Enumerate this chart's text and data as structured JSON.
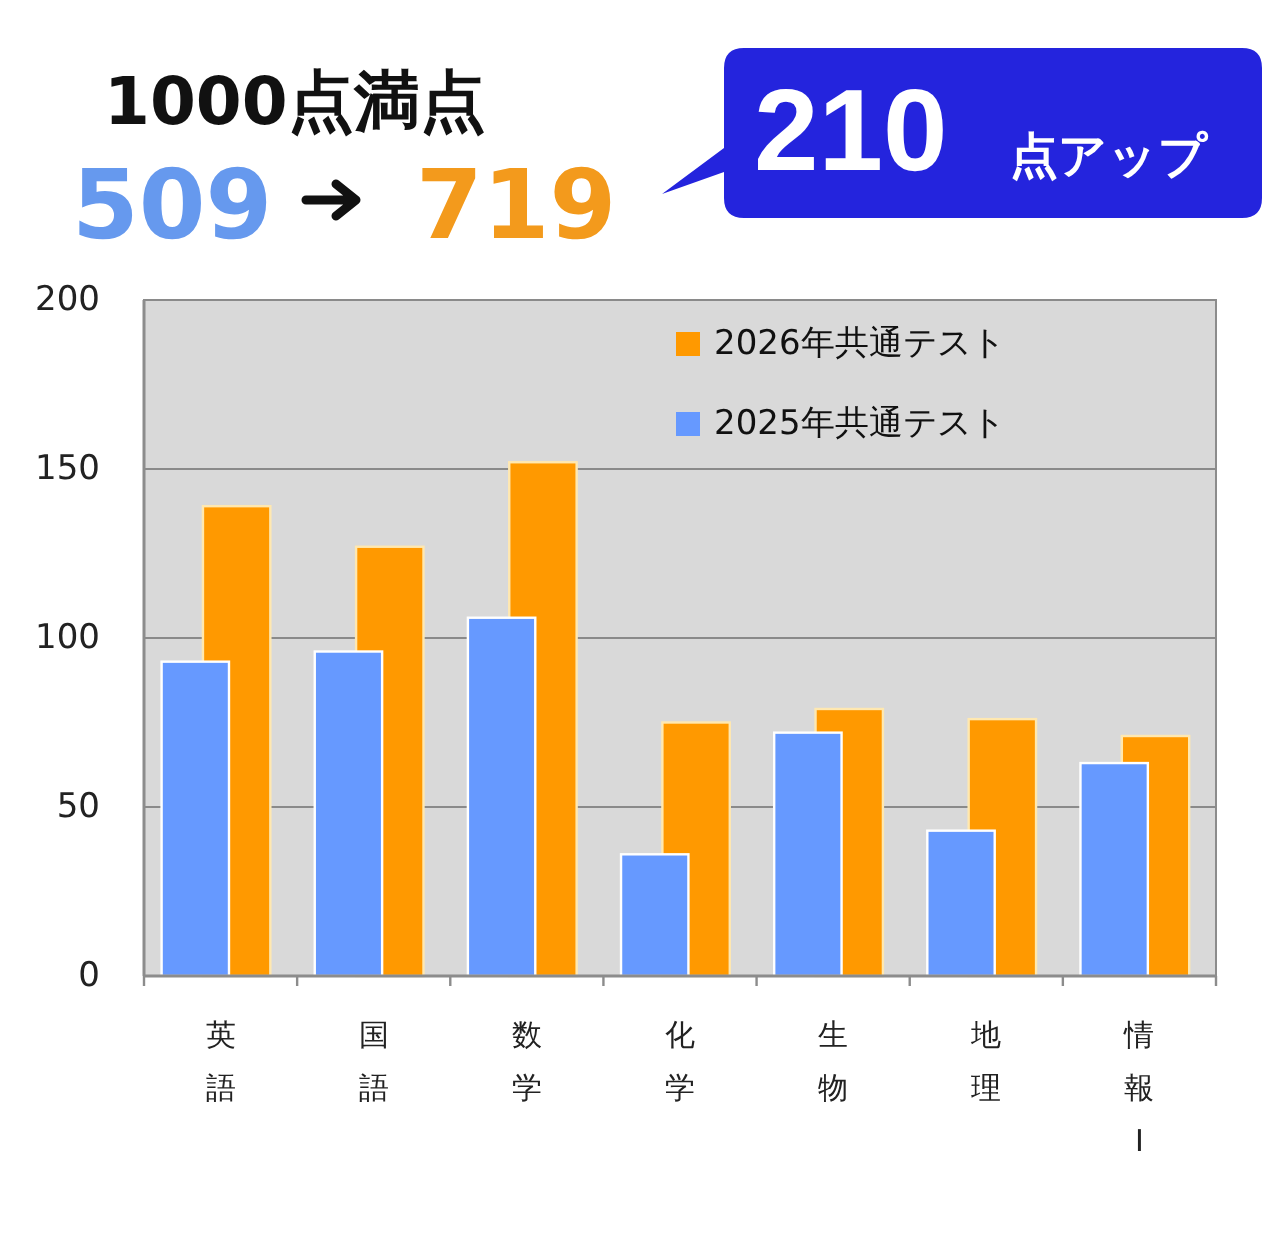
{
  "chart_data": {
    "type": "bar",
    "title": "1000点満点",
    "annotations": [
      "509",
      "719",
      "210",
      "点アップ"
    ],
    "categories": [
      "英語",
      "国語",
      "数学",
      "化学",
      "生物",
      "地理",
      "情報Ⅰ"
    ],
    "series": [
      {
        "name": "2025年共通テスト",
        "color": "#6699ff",
        "values": [
          93,
          96,
          106,
          36,
          72,
          43,
          63
        ]
      },
      {
        "name": "2026年共通テスト",
        "color": "#ff9900",
        "values": [
          139,
          127,
          152,
          75,
          79,
          76,
          71
        ]
      }
    ],
    "ylim": [
      0,
      200
    ],
    "yticks": [
      0,
      50,
      100,
      150,
      200
    ],
    "grid": "y",
    "legend": "top right"
  }
}
